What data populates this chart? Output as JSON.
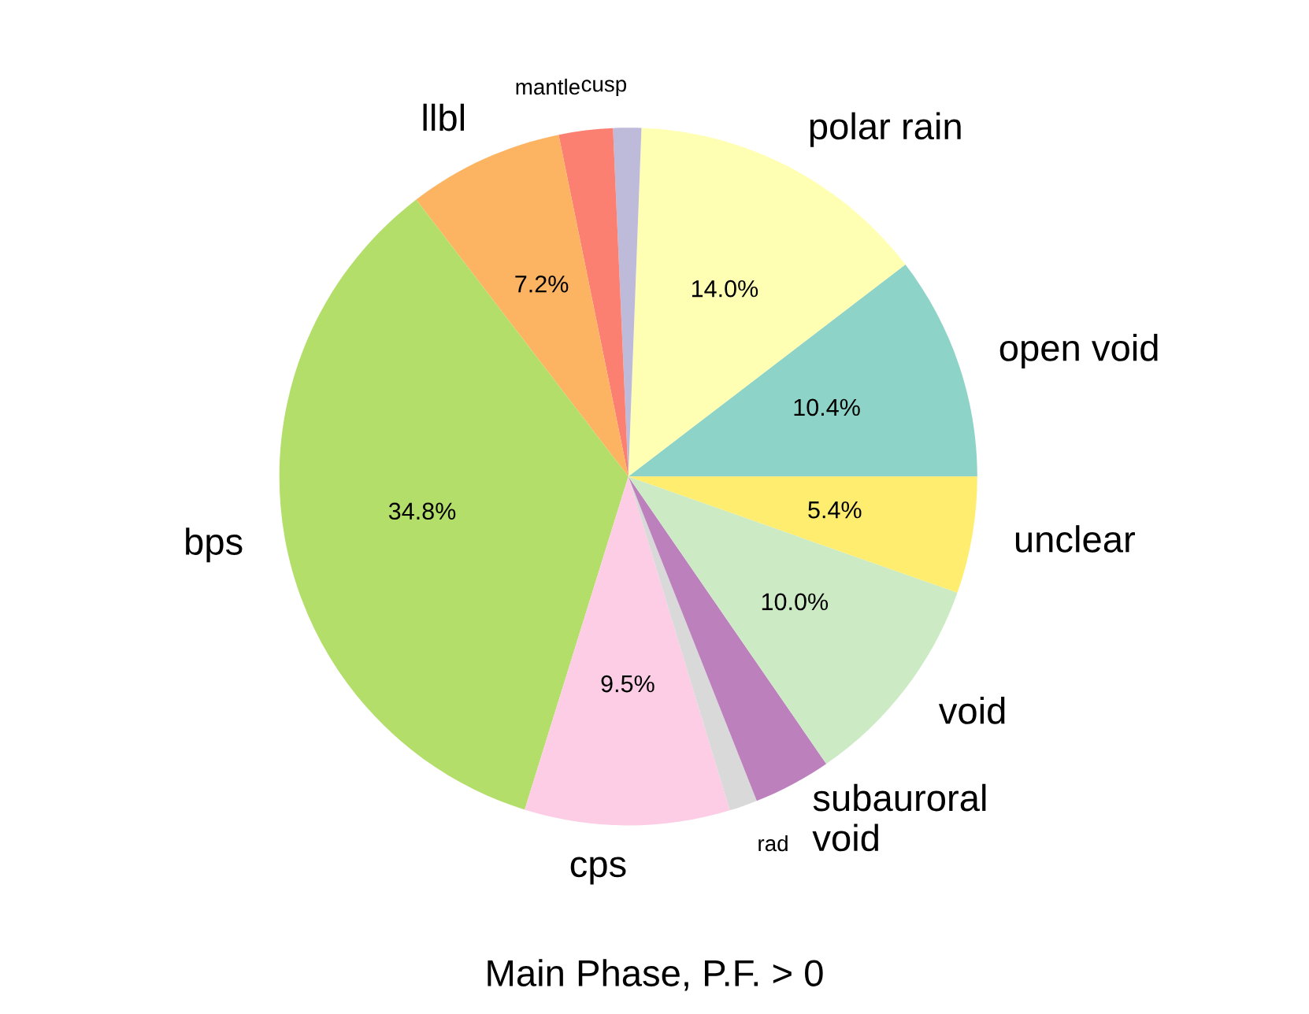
{
  "chart_data": {
    "type": "pie",
    "title": "Main Phase, P.F. > 0",
    "categories": [
      "open void",
      "polar rain",
      "cusp",
      "mantle",
      "llbl",
      "bps",
      "cps",
      "rad",
      "subauroral\nvoid",
      "void",
      "unclear"
    ],
    "values": [
      10.4,
      14.0,
      1.3,
      2.5,
      7.2,
      34.8,
      9.5,
      1.3,
      3.6,
      10.0,
      5.4
    ],
    "value_labels": [
      "10.4%",
      "14.0%",
      null,
      null,
      "7.2%",
      "34.8%",
      "9.5%",
      null,
      null,
      "10.0%",
      "5.4%"
    ],
    "colors": [
      "#8dd3c7",
      "#ffffb3",
      "#bebada",
      "#fb8072",
      "#fdb462",
      "#b3de69",
      "#fccde5",
      "#d9d9d9",
      "#bc80bd",
      "#ccebc5",
      "#ffed6f"
    ],
    "legend": false
  }
}
